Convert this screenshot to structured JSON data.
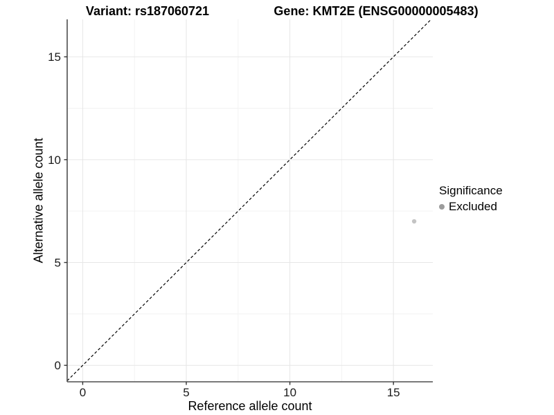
{
  "chart_data": {
    "type": "scatter",
    "titles": {
      "left": "Variant: rs187060721",
      "right": "Gene: KMT2E (ENSG00000005483)"
    },
    "xlabel": "Reference allele count",
    "ylabel": "Alternative allele count",
    "xlim": [
      -0.75,
      16.9
    ],
    "ylim": [
      -0.8,
      16.82
    ],
    "xticks": [
      0,
      5,
      10,
      15
    ],
    "yticks": [
      0,
      5,
      10,
      15
    ],
    "xminor": [
      2.5,
      7.5,
      12.5
    ],
    "yminor": [
      2.5,
      7.5,
      12.5
    ],
    "grid": true,
    "identity_line": {
      "style": "dashed",
      "equation": "y = x"
    },
    "series": [
      {
        "name": "Excluded",
        "color": "#c4c4c4",
        "points": [
          {
            "x": 16,
            "y": 7
          }
        ]
      }
    ],
    "legend": {
      "title": "Significance",
      "position": "right",
      "entries": [
        {
          "label": "Excluded",
          "color": "#9c9c9c"
        }
      ]
    },
    "colors": {
      "background": "#ffffff",
      "axis_line": "#4d4d4d",
      "tick": "#333333",
      "grid_major": "#e6e6e6",
      "grid_minor": "#f2f2f2",
      "identity_line": "#000000",
      "text": "#000000"
    }
  }
}
